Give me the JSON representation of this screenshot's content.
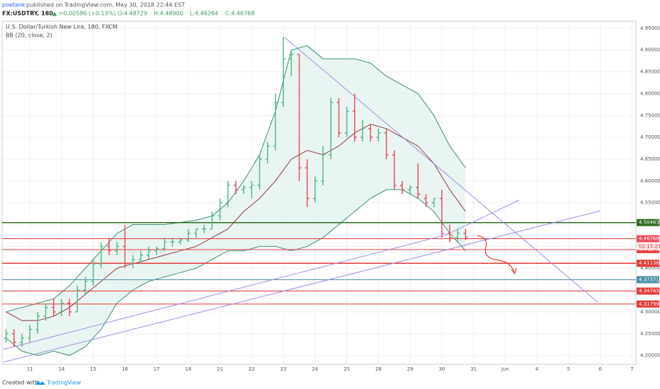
{
  "header": {
    "publisher": "poetank",
    "published": "published on TradingView.com, May 30, 2018 22:44 EST",
    "symbol": "FX:USDTRY, 180",
    "change": "▲ +0.00596 (+0.13%)",
    "ohlc": [
      "O:4.48729",
      "H:4.48900",
      "L:4.46264",
      "C:4.46768"
    ]
  },
  "chart_data": {
    "type": "ohlc",
    "title": "U.S. Dollar/Turkish New Lira, 180, FXCM",
    "indicator": "BB (20, close, 2)",
    "up_color": "#53b987",
    "down_color": "#eb4d5c",
    "x": [
      0,
      2,
      4,
      6,
      8,
      10,
      12,
      14,
      16,
      18,
      20,
      22,
      24,
      26,
      28,
      30,
      32,
      34,
      36,
      38,
      40,
      42,
      44,
      46,
      48,
      50,
      52,
      54,
      56,
      58,
      60,
      62,
      64,
      66,
      68,
      70,
      72,
      74,
      76,
      78,
      80,
      82,
      84,
      86,
      88,
      90,
      92,
      94,
      96,
      98,
      100,
      102,
      104,
      106,
      108,
      110,
      112,
      114,
      116
    ],
    "open": [
      4.24,
      4.25,
      4.23,
      4.24,
      4.26,
      4.29,
      4.31,
      4.3,
      4.32,
      4.3,
      4.35,
      4.37,
      4.41,
      4.45,
      4.44,
      4.45,
      4.41,
      4.42,
      4.43,
      4.44,
      4.445,
      4.46,
      4.46,
      4.465,
      4.48,
      4.49,
      4.49,
      4.52,
      4.55,
      4.59,
      4.58,
      4.585,
      4.59,
      4.65,
      4.68,
      4.78,
      4.88,
      4.89,
      4.63,
      4.56,
      4.6,
      4.66,
      4.78,
      4.71,
      4.76,
      4.7,
      4.72,
      4.7,
      4.71,
      4.66,
      4.59,
      4.58,
      4.585,
      4.56,
      4.55,
      4.56,
      4.48,
      4.47,
      4.48
    ],
    "high": [
      4.26,
      4.26,
      4.25,
      4.27,
      4.3,
      4.32,
      4.33,
      4.33,
      4.33,
      4.36,
      4.38,
      4.42,
      4.46,
      4.47,
      4.46,
      4.5,
      4.43,
      4.44,
      4.45,
      4.45,
      4.47,
      4.47,
      4.47,
      4.49,
      4.49,
      4.5,
      4.53,
      4.56,
      4.6,
      4.6,
      4.59,
      4.6,
      4.66,
      4.69,
      4.8,
      4.93,
      4.9,
      4.89,
      4.65,
      4.61,
      4.68,
      4.79,
      4.79,
      4.77,
      4.8,
      4.74,
      4.73,
      4.72,
      4.72,
      4.67,
      4.6,
      4.59,
      4.64,
      4.57,
      4.56,
      4.58,
      4.5,
      4.49,
      4.49
    ],
    "low": [
      4.23,
      4.22,
      4.22,
      4.23,
      4.25,
      4.28,
      4.29,
      4.29,
      4.29,
      4.3,
      4.34,
      4.36,
      4.4,
      4.43,
      4.43,
      4.4,
      4.4,
      4.41,
      4.42,
      4.43,
      4.44,
      4.45,
      4.455,
      4.46,
      4.47,
      4.48,
      4.49,
      4.51,
      4.54,
      4.57,
      4.57,
      4.56,
      4.58,
      4.64,
      4.67,
      4.77,
      4.84,
      4.6,
      4.54,
      4.55,
      4.59,
      4.65,
      4.7,
      4.7,
      4.69,
      4.69,
      4.69,
      4.69,
      4.65,
      4.58,
      4.57,
      4.57,
      4.56,
      4.54,
      4.54,
      4.47,
      4.46,
      4.46,
      4.465
    ],
    "close": [
      4.25,
      4.23,
      4.24,
      4.26,
      4.29,
      4.31,
      4.3,
      4.32,
      4.3,
      4.35,
      4.37,
      4.41,
      4.45,
      4.44,
      4.45,
      4.41,
      4.42,
      4.43,
      4.44,
      4.445,
      4.46,
      4.46,
      4.465,
      4.48,
      4.49,
      4.49,
      4.52,
      4.55,
      4.59,
      4.58,
      4.585,
      4.59,
      4.65,
      4.68,
      4.78,
      4.88,
      4.89,
      4.63,
      4.56,
      4.6,
      4.66,
      4.78,
      4.71,
      4.76,
      4.7,
      4.72,
      4.7,
      4.71,
      4.66,
      4.59,
      4.58,
      4.585,
      4.57,
      4.55,
      4.56,
      4.48,
      4.47,
      4.48,
      4.47
    ],
    "bands": {
      "x": [
        0,
        4,
        8,
        12,
        16,
        20,
        24,
        28,
        32,
        36,
        40,
        44,
        48,
        52,
        56,
        60,
        64,
        68,
        72,
        76,
        80,
        84,
        88,
        92,
        96,
        100,
        104,
        108,
        112,
        116
      ],
      "fill": "#e4f3ef",
      "series": [
        {
          "name": "upper",
          "color": "#3a8f74",
          "values": [
            4.3,
            4.31,
            4.32,
            4.33,
            4.36,
            4.4,
            4.44,
            4.48,
            4.5,
            4.5,
            4.5,
            4.505,
            4.51,
            4.52,
            4.55,
            4.6,
            4.66,
            4.76,
            4.9,
            4.91,
            4.88,
            4.88,
            4.88,
            4.87,
            4.84,
            4.82,
            4.8,
            4.75,
            4.68,
            4.63
          ]
        },
        {
          "name": "basis",
          "color": "#8b3c3c",
          "values": [
            4.3,
            4.28,
            4.28,
            4.29,
            4.31,
            4.34,
            4.37,
            4.4,
            4.41,
            4.42,
            4.43,
            4.44,
            4.45,
            4.47,
            4.49,
            4.53,
            4.56,
            4.6,
            4.65,
            4.67,
            4.66,
            4.68,
            4.71,
            4.73,
            4.72,
            4.7,
            4.68,
            4.64,
            4.58,
            4.53
          ]
        },
        {
          "name": "lower",
          "color": "#3a8f74",
          "values": [
            4.24,
            4.21,
            4.2,
            4.21,
            4.2,
            4.22,
            4.26,
            4.32,
            4.35,
            4.37,
            4.38,
            4.39,
            4.4,
            4.42,
            4.44,
            4.44,
            4.45,
            4.45,
            4.44,
            4.45,
            4.47,
            4.5,
            4.53,
            4.56,
            4.58,
            4.58,
            4.56,
            4.53,
            4.48,
            4.44
          ]
        }
      ]
    },
    "levels": [
      {
        "value": 4.50463,
        "color": "#2e6b1f"
      },
      {
        "value": 4.4676,
        "color": "#e53935"
      },
      {
        "value": 4.44279,
        "color": "#e53935"
      },
      {
        "value": 4.41136,
        "color": "#e53935"
      },
      {
        "value": 4.37371,
        "color": "#4a8fa8"
      },
      {
        "value": 4.34765,
        "color": "#e53935"
      },
      {
        "value": 4.31799,
        "color": "#e53935"
      }
    ],
    "last_price": 4.46768,
    "countdown": "02:15:23",
    "ylim": [
      4.18,
      4.966
    ],
    "yticks": [
      {
        "value": 4.2,
        "label": "4.20000"
      },
      {
        "value": 4.25,
        "label": "4.25000"
      },
      {
        "value": 4.3,
        "label": "4.30000"
      },
      {
        "value": 4.35,
        "label": "4.35000"
      },
      {
        "value": 4.4,
        "label": "4.40000"
      },
      {
        "value": 4.45,
        "label": "4.45000"
      },
      {
        "value": 4.5,
        "label": "4.50000"
      },
      {
        "value": 4.55,
        "label": "4.55000"
      },
      {
        "value": 4.6,
        "label": "4.60000"
      },
      {
        "value": 4.65,
        "label": "4.65000"
      },
      {
        "value": 4.7,
        "label": "4.70000"
      },
      {
        "value": 4.75,
        "label": "4.75000"
      },
      {
        "value": 4.8,
        "label": "4.80000"
      },
      {
        "value": 4.85,
        "label": "4.85000"
      },
      {
        "value": 4.9,
        "label": "4.90000"
      },
      {
        "value": 4.95,
        "label": "4.95000"
      }
    ],
    "xlim": [
      -1,
      159
    ],
    "xticks": [
      {
        "value": 6,
        "label": "11"
      },
      {
        "value": 14,
        "label": "14"
      },
      {
        "value": 22,
        "label": "15"
      },
      {
        "value": 30,
        "label": "16"
      },
      {
        "value": 38,
        "label": "17"
      },
      {
        "value": 46,
        "label": "18"
      },
      {
        "value": 54,
        "label": "21"
      },
      {
        "value": 62,
        "label": "22"
      },
      {
        "value": 70,
        "label": "23"
      },
      {
        "value": 78,
        "label": "24"
      },
      {
        "value": 86,
        "label": "25"
      },
      {
        "value": 94,
        "label": "28"
      },
      {
        "value": 102,
        "label": "29"
      },
      {
        "value": 110,
        "label": "30"
      },
      {
        "value": 118,
        "label": "31"
      },
      {
        "value": 126,
        "label": "Jun"
      },
      {
        "value": 134,
        "label": "4"
      },
      {
        "value": 142,
        "label": "5"
      },
      {
        "value": 150,
        "label": "6"
      },
      {
        "value": 158,
        "label": "7"
      }
    ],
    "grid": true
  },
  "footer": {
    "created": "Created with",
    "brand": "TradingView"
  }
}
